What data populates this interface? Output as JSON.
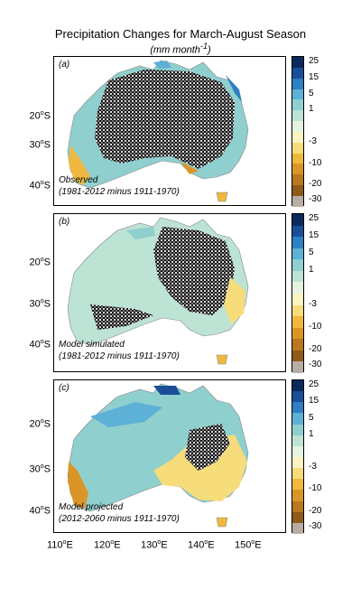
{
  "figure": {
    "title": "Precipitation Changes for March-August Season",
    "units": "(mm month-1)",
    "units_main": "(mm month",
    "units_exp": "-1",
    "units_close": ")"
  },
  "legend": {
    "labels": [
      "25",
      "15",
      "5",
      "1",
      "-3",
      "-10",
      "-20",
      "-30"
    ],
    "colors": [
      "#0b2a5c",
      "#1a4f98",
      "#2e7fc4",
      "#5db0d6",
      "#8fcfce",
      "#bde3d4",
      "#e6f3e1",
      "#fbf3c2",
      "#f6dc7a",
      "#eeb93e",
      "#d99627",
      "#b8781f",
      "#8f5b1b",
      "#b8ada4"
    ]
  },
  "lat_labels": [
    {
      "deg": "20",
      "hemi": "S"
    },
    {
      "deg": "30",
      "hemi": "S"
    },
    {
      "deg": "40",
      "hemi": "S"
    }
  ],
  "lon_labels": [
    {
      "deg": "110",
      "hemi": "E"
    },
    {
      "deg": "120",
      "hemi": "E"
    },
    {
      "deg": "130",
      "hemi": "E"
    },
    {
      "deg": "140",
      "hemi": "E"
    },
    {
      "deg": "150",
      "hemi": "E"
    }
  ],
  "panels": [
    {
      "letter": "(a)",
      "caption_line1": "Observed",
      "caption_line2": "(1981-2012 minus 1911-1970)",
      "dominant_color": "#8fcfce",
      "accent_color": "#eeb93e"
    },
    {
      "letter": "(b)",
      "caption_line1": "Model simulated",
      "caption_line2": "(1981-2012 minus 1911-1970)",
      "dominant_color": "#bde3d4",
      "accent_color": "#f6dc7a"
    },
    {
      "letter": "(c)",
      "caption_line1": "Model projected",
      "caption_line2": "(2012-2060 minus 1911-1970)",
      "dominant_color": "#8fcfce",
      "accent_color": "#eeb93e"
    }
  ]
}
